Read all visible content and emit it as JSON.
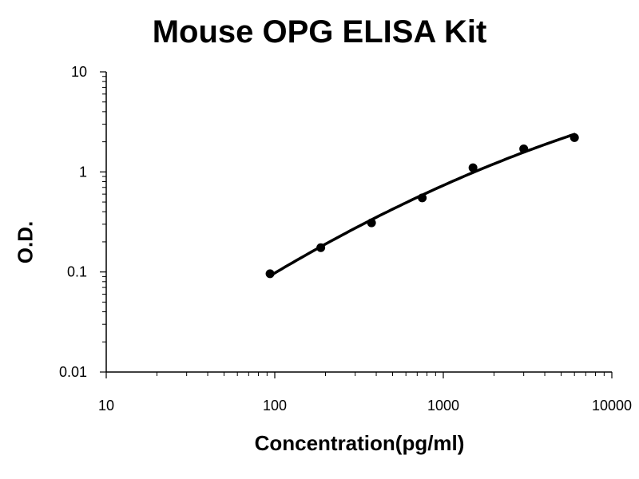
{
  "chart_data": {
    "type": "line",
    "title": "Mouse OPG ELISA Kit",
    "xlabel": "Concentration(pg/ml)",
    "ylabel": "O.D.",
    "x_scale": "log",
    "y_scale": "log",
    "xlim": [
      10,
      10000
    ],
    "ylim": [
      0.01,
      10
    ],
    "x_tick_labels": [
      "10",
      "100",
      "1000",
      "10000"
    ],
    "y_tick_labels": [
      "0.01",
      "0.1",
      "1",
      "10"
    ],
    "grid": false,
    "legend": "none",
    "series": [
      {
        "points": [
          {
            "x": 93.75,
            "y": 0.096
          },
          {
            "x": 187.5,
            "y": 0.175
          },
          {
            "x": 375,
            "y": 0.31
          },
          {
            "x": 750,
            "y": 0.55
          },
          {
            "x": 1500,
            "y": 1.1
          },
          {
            "x": 3000,
            "y": 1.7
          },
          {
            "x": 6000,
            "y": 2.2
          }
        ]
      }
    ],
    "colors": {
      "line": "#000000",
      "marker": "#000000"
    }
  }
}
